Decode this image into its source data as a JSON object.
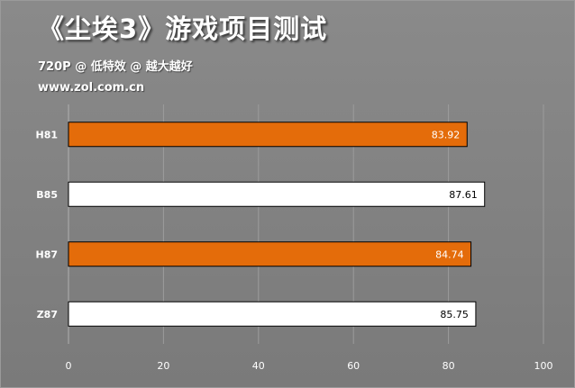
{
  "header": {
    "title": "《尘埃3》游戏项目测试",
    "subtitle": "720P @ 低特效 @ 越大越好",
    "source": "www.zol.com.cn"
  },
  "colors": {
    "background": "#7f7f7f",
    "orange": "#e46c0a",
    "white": "#ffffff",
    "gridline": "#9c9c9c"
  },
  "chart_data": {
    "type": "bar",
    "orientation": "horizontal",
    "title": "《尘埃3》游戏项目测试",
    "subtitle": "720P @ 低特效 @ 越大越好",
    "categories": [
      "H81",
      "B85",
      "H87",
      "Z87"
    ],
    "values": [
      83.92,
      87.61,
      84.74,
      85.75
    ],
    "value_labels": [
      "83.92",
      "87.61",
      "84.74",
      "85.75"
    ],
    "bar_colors": [
      "#e46c0a",
      "#ffffff",
      "#e46c0a",
      "#ffffff"
    ],
    "label_colors": [
      "#ffffff",
      "#000000",
      "#ffffff",
      "#000000"
    ],
    "xlim": [
      0,
      100
    ],
    "xticks": [
      0,
      20,
      40,
      60,
      80,
      100
    ],
    "xtick_labels": [
      "0",
      "20",
      "40",
      "60",
      "80",
      "100"
    ],
    "grid": true,
    "legend": "none"
  }
}
